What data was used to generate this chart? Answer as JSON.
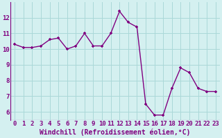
{
  "x": [
    0,
    1,
    2,
    3,
    4,
    5,
    6,
    7,
    8,
    9,
    10,
    11,
    12,
    13,
    14,
    15,
    16,
    17,
    18,
    19,
    20,
    21,
    22,
    23
  ],
  "y": [
    10.3,
    10.1,
    10.1,
    10.2,
    10.6,
    10.7,
    10.0,
    10.2,
    11.0,
    10.2,
    10.2,
    11.0,
    12.4,
    11.7,
    11.4,
    6.5,
    5.8,
    5.8,
    7.5,
    8.8,
    8.5,
    7.5,
    7.3,
    7.3
  ],
  "line_color": "#800080",
  "marker": "+",
  "bg_color": "#d4f0f0",
  "grid_color": "#aad8d8",
  "axis_label": "Windchill (Refroidissement éolien,°C)",
  "tick_color": "#800080",
  "ylim": [
    5.5,
    13.0
  ],
  "yticks": [
    6,
    7,
    8,
    9,
    10,
    11,
    12
  ],
  "xticks": [
    0,
    1,
    2,
    3,
    4,
    5,
    6,
    7,
    8,
    9,
    10,
    11,
    12,
    13,
    14,
    15,
    16,
    17,
    18,
    19,
    20,
    21,
    22,
    23
  ],
  "tick_fontsize": 6.5,
  "label_fontsize": 7,
  "linewidth": 1.0,
  "markersize": 3.5,
  "markeredgewidth": 1.2
}
